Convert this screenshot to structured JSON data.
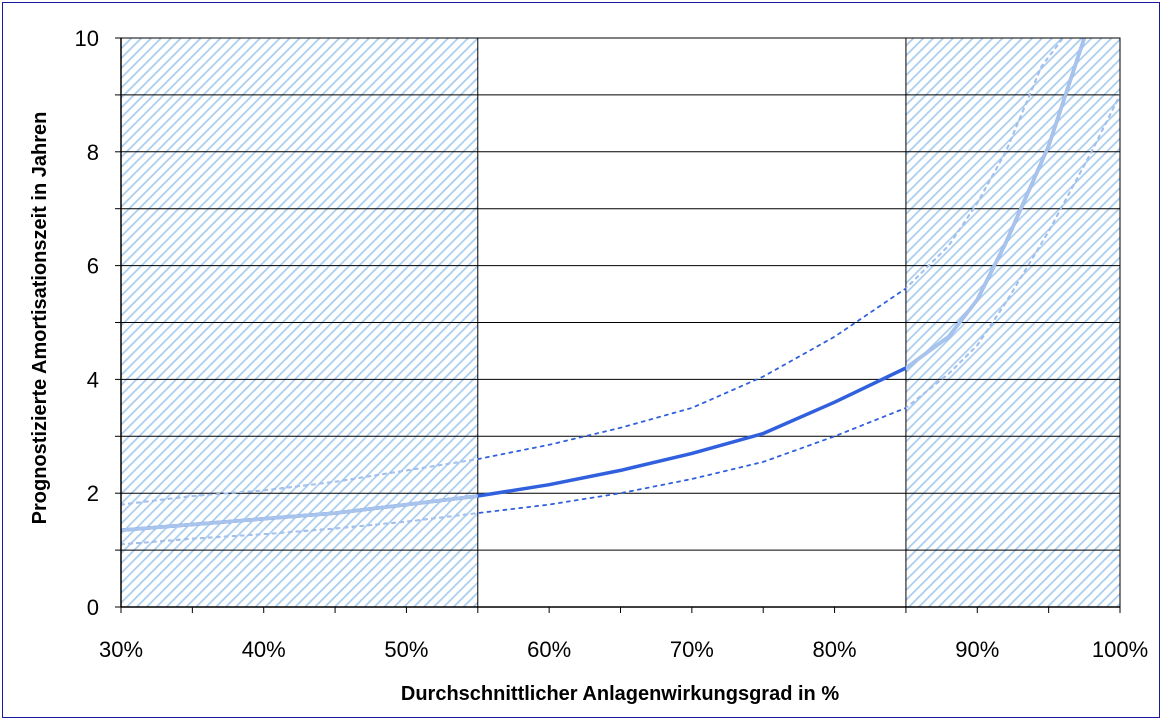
{
  "chart_data": {
    "type": "line",
    "title": "",
    "xlabel": "Durchschnittlicher Anlagenwirkungsgrad in %",
    "ylabel": "Prognostizierte Amortisationszeit in Jahren",
    "xlim": [
      30,
      100
    ],
    "ylim": [
      0,
      10
    ],
    "x_ticks": [
      30,
      40,
      50,
      60,
      70,
      80,
      90,
      100
    ],
    "x_tick_labels": [
      "30%",
      "40%",
      "50%",
      "60%",
      "70%",
      "80%",
      "90%",
      "100%"
    ],
    "y_ticks": [
      0,
      2,
      4,
      6,
      8,
      10
    ],
    "y_tick_labels": [
      "0",
      "2",
      "4",
      "6",
      "8",
      "10"
    ],
    "grid": true,
    "shaded_regions": [
      {
        "x_from": 30,
        "x_to": 55
      },
      {
        "x_from": 85,
        "x_to": 100
      }
    ],
    "series": [
      {
        "style": "solid",
        "x": [
          30,
          35,
          40,
          45,
          50,
          55,
          60,
          65,
          70,
          75,
          80,
          85,
          88,
          90,
          92,
          95,
          97.5,
          100
        ],
        "values": [
          1.35,
          1.45,
          1.55,
          1.65,
          1.8,
          1.95,
          2.15,
          2.4,
          2.7,
          3.05,
          3.6,
          4.2,
          4.75,
          5.4,
          6.4,
          8.1,
          10.0,
          11.5
        ]
      },
      {
        "style": "dotted",
        "x": [
          30,
          35,
          40,
          45,
          50,
          55,
          60,
          65,
          70,
          75,
          80,
          85,
          88,
          90,
          92,
          94.5,
          96
        ],
        "values": [
          1.8,
          1.95,
          2.05,
          2.2,
          2.4,
          2.6,
          2.85,
          3.15,
          3.5,
          4.05,
          4.75,
          5.6,
          6.35,
          7.1,
          8.0,
          9.5,
          10.0
        ]
      },
      {
        "style": "dotted",
        "x": [
          30,
          35,
          40,
          45,
          50,
          55,
          60,
          65,
          70,
          75,
          80,
          85,
          88,
          90,
          92,
          95,
          98,
          100
        ],
        "values": [
          1.1,
          1.2,
          1.28,
          1.38,
          1.5,
          1.65,
          1.8,
          2.0,
          2.25,
          2.55,
          3.0,
          3.5,
          4.1,
          4.6,
          5.35,
          6.6,
          8.0,
          9.0
        ]
      }
    ],
    "colors": {
      "line": "#3060dd",
      "line_in_shade": "#a8c4ec",
      "hatch": "#a9cdee",
      "grid": "#000000",
      "frame": "#1a1aa0"
    }
  }
}
